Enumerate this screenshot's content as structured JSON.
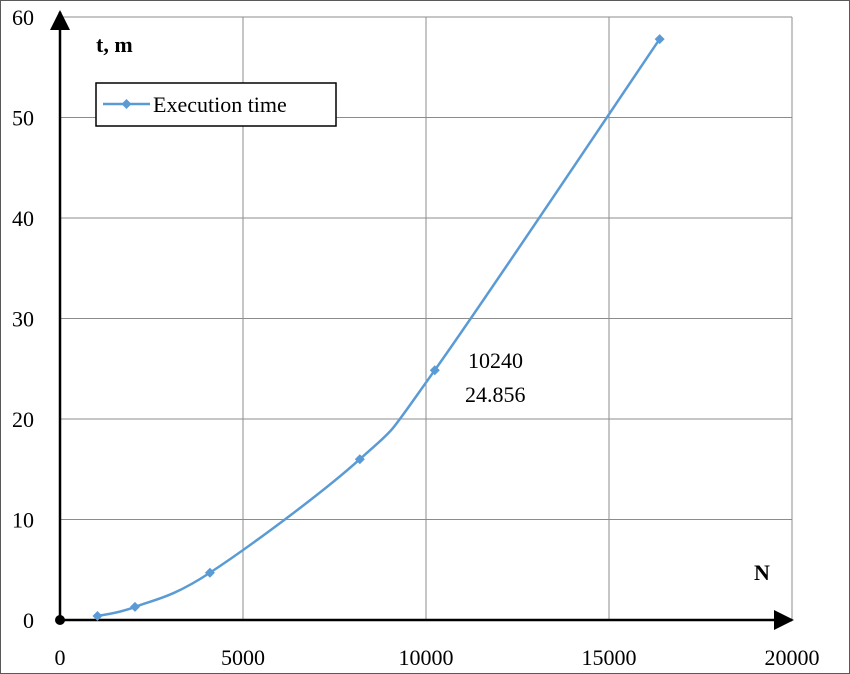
{
  "chart_data": {
    "type": "line",
    "series": [
      {
        "name": "Execution time",
        "color": "#5b9bd5",
        "marker": "diamond",
        "x": [
          1024,
          2048,
          4096,
          8192,
          10240,
          16384
        ],
        "y": [
          0.4,
          1.3,
          4.7,
          16.0,
          24.856,
          57.8
        ]
      }
    ],
    "xlabel": "N",
    "ylabel": "t, m",
    "xlim": [
      0,
      20000
    ],
    "ylim": [
      0,
      60
    ],
    "xticks": [
      "0",
      "5000",
      "10000",
      "15000",
      "20000"
    ],
    "yticks": [
      "0",
      "10",
      "20",
      "30",
      "40",
      "50",
      "60"
    ],
    "grid": true,
    "legend_position": "top-left",
    "annotation": {
      "line1": "10240",
      "line2": "24.856"
    }
  }
}
